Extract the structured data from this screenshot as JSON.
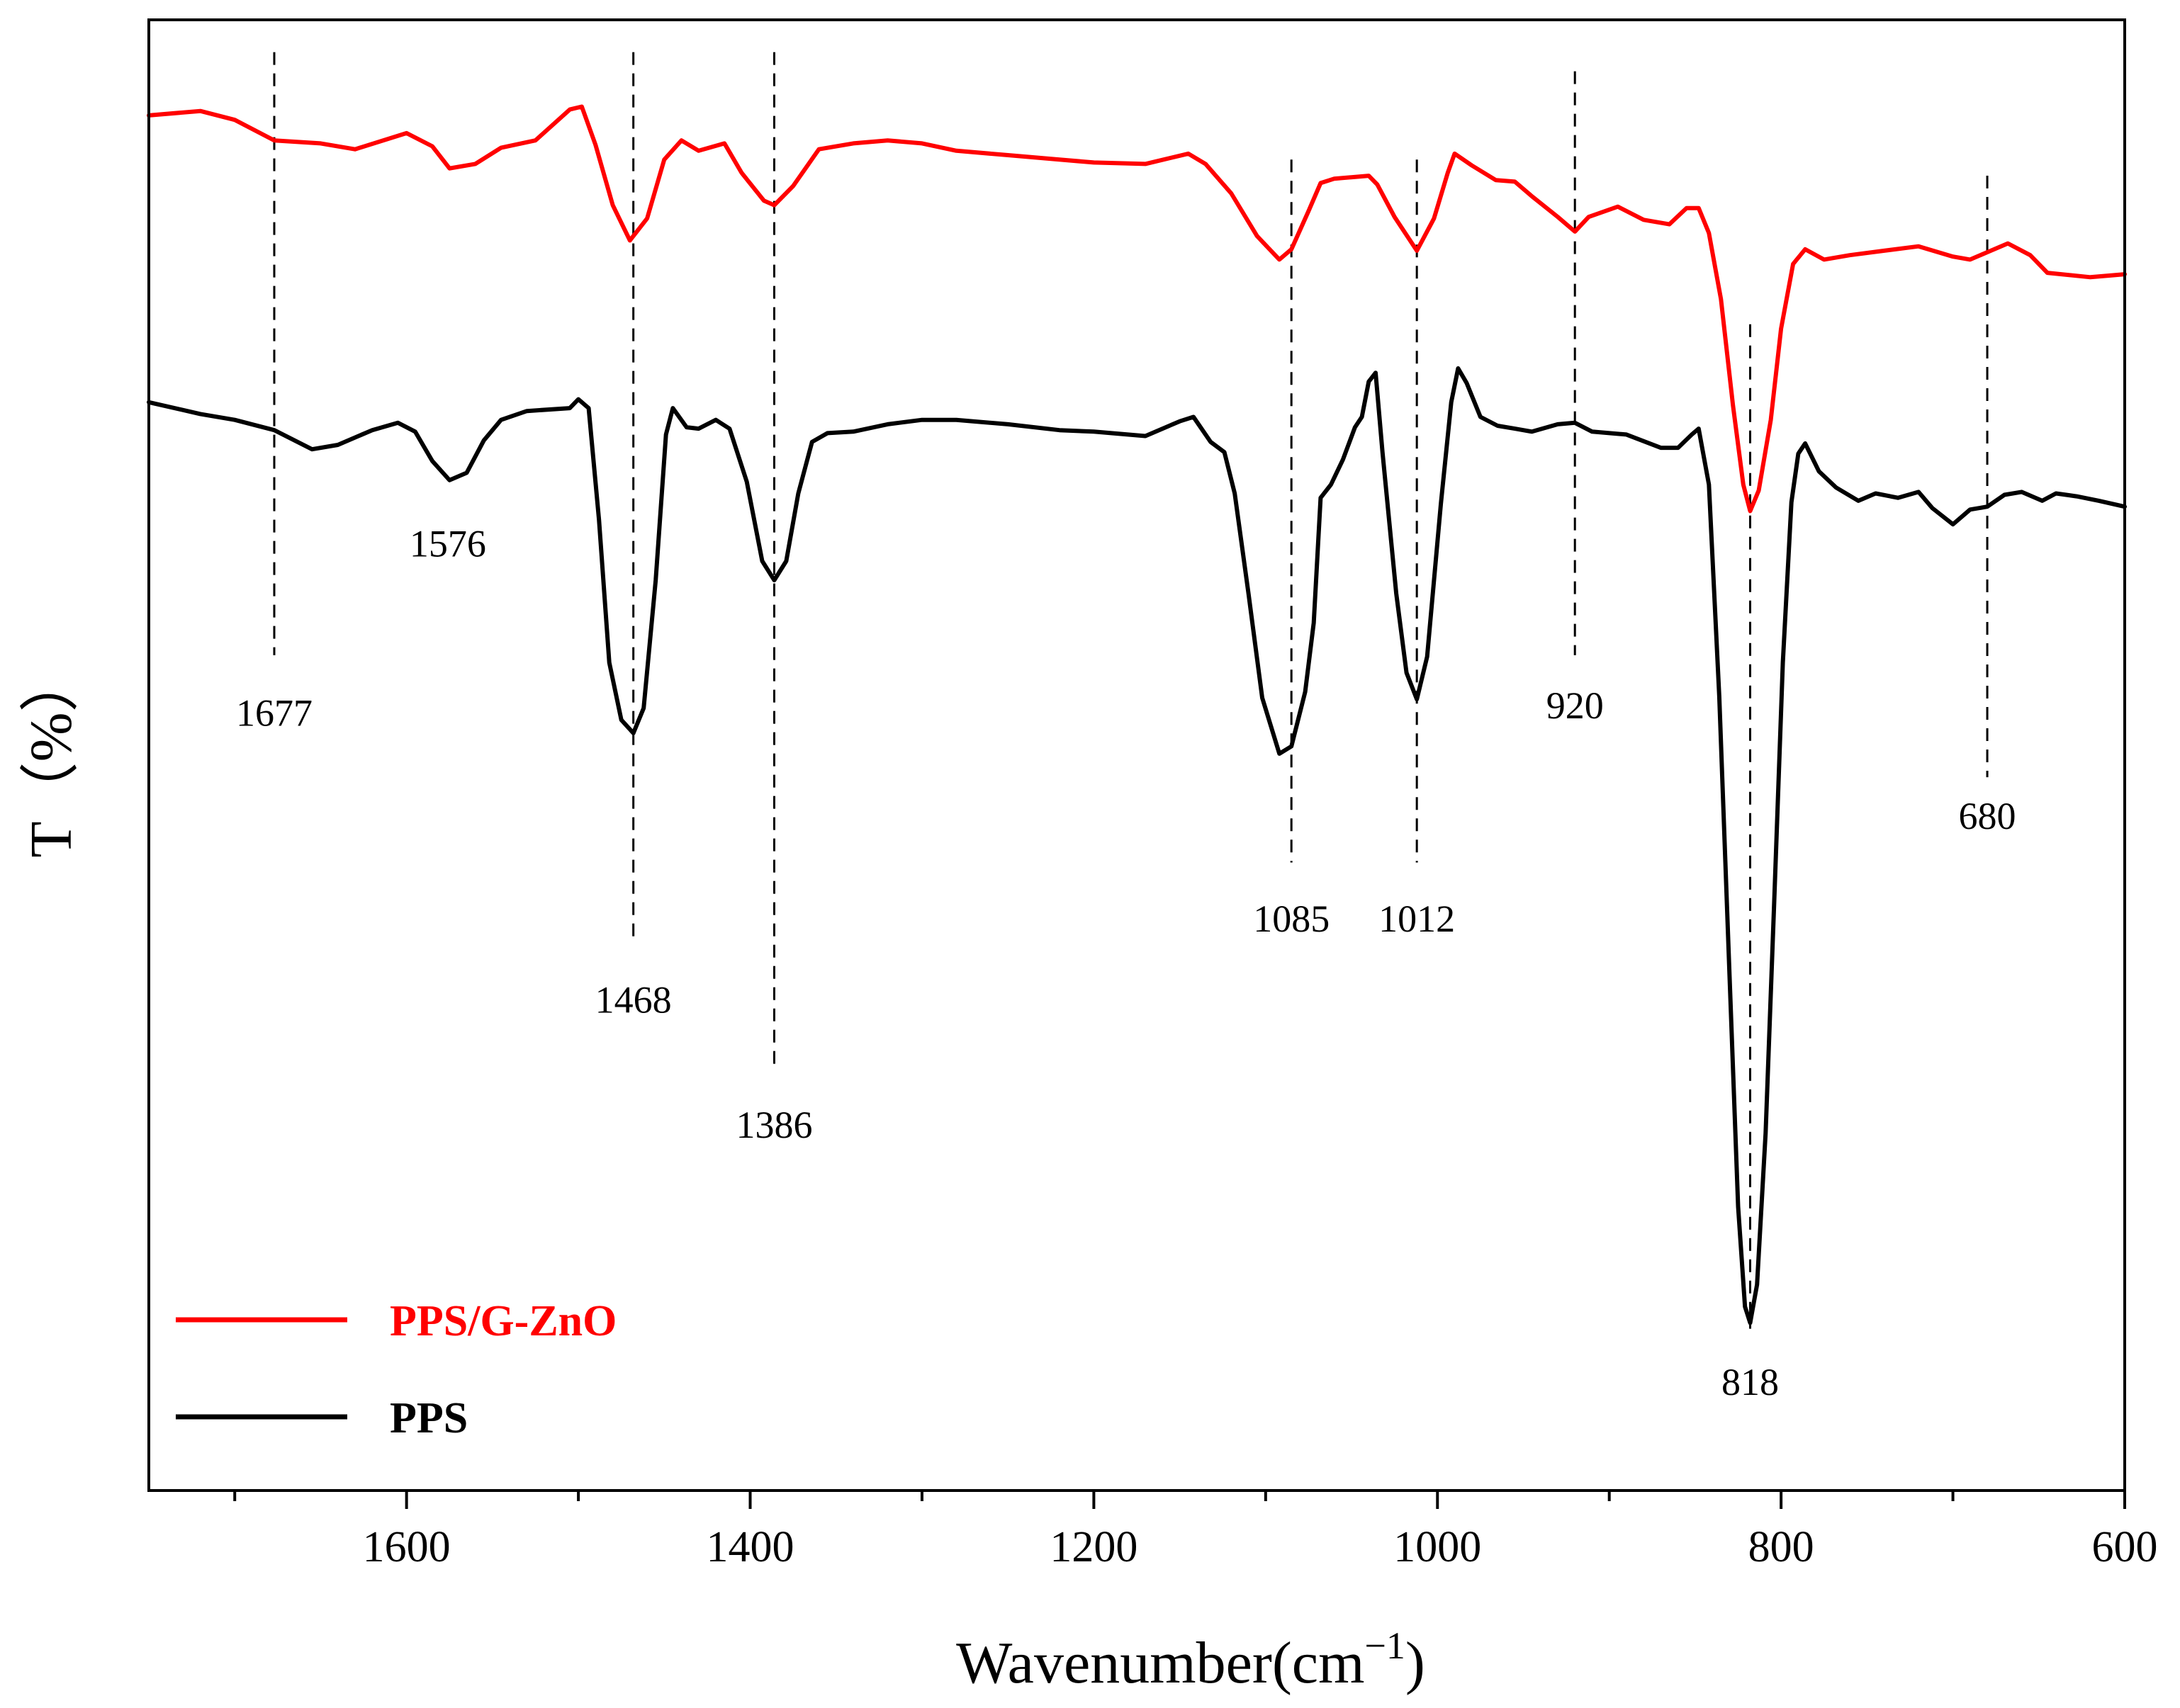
{
  "chart_data": {
    "type": "line",
    "title": "",
    "xlabel": "Wavenumber(cm",
    "xlabel_sup": "−1",
    "xlabel_close": ")",
    "ylabel": "T（%）",
    "xlim": [
      1750,
      600
    ],
    "x_ticks": [
      1600,
      1400,
      1200,
      1000,
      800,
      600
    ],
    "x_tick_labels": [
      "1600",
      "1400",
      "1200",
      "1000",
      "800",
      "600"
    ],
    "y_units": "arbitrary (transmittance, offset)",
    "ylim": [
      0,
      100
    ],
    "legend_position": "bottom-left",
    "series": [
      {
        "name": "PPS/G-ZnO",
        "color": "#ff0000",
        "points": [
          [
            1750,
            93.5
          ],
          [
            1720,
            93.8
          ],
          [
            1700,
            93.2
          ],
          [
            1677,
            91.8
          ],
          [
            1650,
            91.6
          ],
          [
            1630,
            91.2
          ],
          [
            1600,
            92.3
          ],
          [
            1585,
            91.4
          ],
          [
            1575,
            89.9
          ],
          [
            1560,
            90.2
          ],
          [
            1545,
            91.3
          ],
          [
            1525,
            91.8
          ],
          [
            1505,
            93.9
          ],
          [
            1498,
            94.1
          ],
          [
            1490,
            91.5
          ],
          [
            1480,
            87.4
          ],
          [
            1470,
            85.0
          ],
          [
            1460,
            86.5
          ],
          [
            1450,
            90.5
          ],
          [
            1440,
            91.8
          ],
          [
            1430,
            91.1
          ],
          [
            1415,
            91.6
          ],
          [
            1405,
            89.6
          ],
          [
            1392,
            87.7
          ],
          [
            1386,
            87.4
          ],
          [
            1375,
            88.7
          ],
          [
            1360,
            91.2
          ],
          [
            1340,
            91.6
          ],
          [
            1320,
            91.8
          ],
          [
            1300,
            91.6
          ],
          [
            1280,
            91.1
          ],
          [
            1250,
            90.8
          ],
          [
            1220,
            90.5
          ],
          [
            1200,
            90.3
          ],
          [
            1170,
            90.2
          ],
          [
            1145,
            90.9
          ],
          [
            1135,
            90.2
          ],
          [
            1120,
            88.2
          ],
          [
            1105,
            85.3
          ],
          [
            1092,
            83.7
          ],
          [
            1085,
            84.4
          ],
          [
            1075,
            87.0
          ],
          [
            1068,
            88.9
          ],
          [
            1060,
            89.2
          ],
          [
            1040,
            89.4
          ],
          [
            1035,
            88.8
          ],
          [
            1025,
            86.6
          ],
          [
            1012,
            84.3
          ],
          [
            1002,
            86.5
          ],
          [
            994,
            89.6
          ],
          [
            990,
            90.9
          ],
          [
            980,
            90.1
          ],
          [
            966,
            89.1
          ],
          [
            955,
            89.0
          ],
          [
            945,
            88.0
          ],
          [
            930,
            86.6
          ],
          [
            920,
            85.6
          ],
          [
            912,
            86.6
          ],
          [
            895,
            87.3
          ],
          [
            880,
            86.4
          ],
          [
            865,
            86.1
          ],
          [
            855,
            87.2
          ],
          [
            848,
            87.2
          ],
          [
            842,
            85.5
          ],
          [
            835,
            81.0
          ],
          [
            828,
            73.8
          ],
          [
            822,
            68.4
          ],
          [
            818,
            66.6
          ],
          [
            813,
            68.0
          ],
          [
            806,
            72.8
          ],
          [
            800,
            79.0
          ],
          [
            793,
            83.4
          ],
          [
            786,
            84.4
          ],
          [
            775,
            83.7
          ],
          [
            760,
            84.0
          ],
          [
            740,
            84.3
          ],
          [
            720,
            84.6
          ],
          [
            700,
            83.9
          ],
          [
            690,
            83.7
          ],
          [
            680,
            84.2
          ],
          [
            668,
            84.8
          ],
          [
            655,
            84.0
          ],
          [
            645,
            82.8
          ],
          [
            620,
            82.5
          ],
          [
            600,
            82.7
          ]
        ]
      },
      {
        "name": "PPS",
        "color": "#000000",
        "points": [
          [
            1750,
            74.0
          ],
          [
            1720,
            73.2
          ],
          [
            1700,
            72.8
          ],
          [
            1677,
            72.1
          ],
          [
            1655,
            70.8
          ],
          [
            1640,
            71.1
          ],
          [
            1620,
            72.1
          ],
          [
            1605,
            72.6
          ],
          [
            1595,
            72.0
          ],
          [
            1585,
            70.0
          ],
          [
            1575,
            68.7
          ],
          [
            1565,
            69.2
          ],
          [
            1555,
            71.4
          ],
          [
            1545,
            72.8
          ],
          [
            1530,
            73.4
          ],
          [
            1505,
            73.6
          ],
          [
            1500,
            74.2
          ],
          [
            1494,
            73.6
          ],
          [
            1488,
            66.0
          ],
          [
            1482,
            56.3
          ],
          [
            1475,
            52.4
          ],
          [
            1468,
            51.5
          ],
          [
            1462,
            53.2
          ],
          [
            1455,
            61.9
          ],
          [
            1449,
            71.8
          ],
          [
            1445,
            73.6
          ],
          [
            1437,
            72.3
          ],
          [
            1430,
            72.2
          ],
          [
            1420,
            72.8
          ],
          [
            1412,
            72.2
          ],
          [
            1402,
            68.6
          ],
          [
            1393,
            63.2
          ],
          [
            1386,
            61.9
          ],
          [
            1379,
            63.2
          ],
          [
            1372,
            67.8
          ],
          [
            1364,
            71.3
          ],
          [
            1355,
            71.9
          ],
          [
            1340,
            72.0
          ],
          [
            1320,
            72.5
          ],
          [
            1300,
            72.8
          ],
          [
            1280,
            72.8
          ],
          [
            1250,
            72.5
          ],
          [
            1220,
            72.1
          ],
          [
            1200,
            72.0
          ],
          [
            1170,
            71.7
          ],
          [
            1150,
            72.7
          ],
          [
            1142,
            73.0
          ],
          [
            1132,
            71.3
          ],
          [
            1124,
            70.6
          ],
          [
            1118,
            67.8
          ],
          [
            1110,
            61.0
          ],
          [
            1102,
            53.9
          ],
          [
            1092,
            50.1
          ],
          [
            1085,
            50.6
          ],
          [
            1077,
            54.3
          ],
          [
            1072,
            59.0
          ],
          [
            1068,
            67.5
          ],
          [
            1062,
            68.4
          ],
          [
            1055,
            70.1
          ],
          [
            1048,
            72.3
          ],
          [
            1044,
            73.0
          ],
          [
            1040,
            75.4
          ],
          [
            1036,
            76.0
          ],
          [
            1032,
            70.6
          ],
          [
            1024,
            61.0
          ],
          [
            1018,
            55.6
          ],
          [
            1012,
            53.8
          ],
          [
            1006,
            56.7
          ],
          [
            998,
            67.1
          ],
          [
            992,
            74.0
          ],
          [
            988,
            76.3
          ],
          [
            983,
            75.3
          ],
          [
            975,
            73.0
          ],
          [
            965,
            72.4
          ],
          [
            955,
            72.2
          ],
          [
            945,
            72.0
          ],
          [
            930,
            72.5
          ],
          [
            920,
            72.6
          ],
          [
            910,
            72.0
          ],
          [
            890,
            71.8
          ],
          [
            870,
            70.9
          ],
          [
            860,
            70.9
          ],
          [
            852,
            71.8
          ],
          [
            848,
            72.2
          ],
          [
            842,
            68.4
          ],
          [
            836,
            54.0
          ],
          [
            830,
            35.0
          ],
          [
            825,
            19.3
          ],
          [
            821,
            12.5
          ],
          [
            818,
            11.4
          ],
          [
            814,
            14.0
          ],
          [
            809,
            24.3
          ],
          [
            804,
            40.0
          ],
          [
            799,
            56.3
          ],
          [
            794,
            67.2
          ],
          [
            790,
            70.5
          ],
          [
            786,
            71.2
          ],
          [
            778,
            69.3
          ],
          [
            768,
            68.2
          ],
          [
            755,
            67.3
          ],
          [
            745,
            67.8
          ],
          [
            732,
            67.5
          ],
          [
            720,
            67.9
          ],
          [
            712,
            66.8
          ],
          [
            700,
            65.7
          ],
          [
            690,
            66.7
          ],
          [
            680,
            66.9
          ],
          [
            670,
            67.7
          ],
          [
            660,
            67.9
          ],
          [
            648,
            67.3
          ],
          [
            640,
            67.8
          ],
          [
            628,
            67.6
          ],
          [
            615,
            67.3
          ],
          [
            600,
            66.9
          ]
        ]
      }
    ],
    "peak_markers": [
      {
        "label": "1677",
        "x": 1677,
        "y_top": 97.8,
        "y_bottom": 56.8,
        "label_y": 52.0
      },
      {
        "label": "1468",
        "x": 1468,
        "y_top": 97.8,
        "y_bottom": 37.2,
        "label_y": 32.5
      },
      {
        "label": "1386",
        "x": 1386,
        "y_top": 97.8,
        "y_bottom": 28.9,
        "label_y": 24.0
      },
      {
        "label": "1085",
        "x": 1085,
        "y_top": 90.5,
        "y_bottom": 42.7,
        "label_y": 38.0
      },
      {
        "label": "1012",
        "x": 1012,
        "y_top": 90.5,
        "y_bottom": 42.7,
        "label_y": 38.0
      },
      {
        "label": "920",
        "x": 920,
        "y_top": 96.5,
        "y_bottom": 56.8,
        "label_y": 52.5
      },
      {
        "label": "818",
        "x": 818,
        "y_top": 79.3,
        "y_bottom": 11.0,
        "label_y": 6.5
      },
      {
        "label": "680",
        "x": 680,
        "y_top": 89.4,
        "y_bottom": 48.5,
        "label_y": 45.0
      }
    ],
    "free_labels": [
      {
        "label": "1576",
        "x": 1576,
        "y": 63.5
      }
    ]
  },
  "legend": {
    "items": [
      {
        "name": "PPS/G-ZnO",
        "color": "#ff0000"
      },
      {
        "name": "PPS",
        "color": "#000000"
      }
    ]
  }
}
